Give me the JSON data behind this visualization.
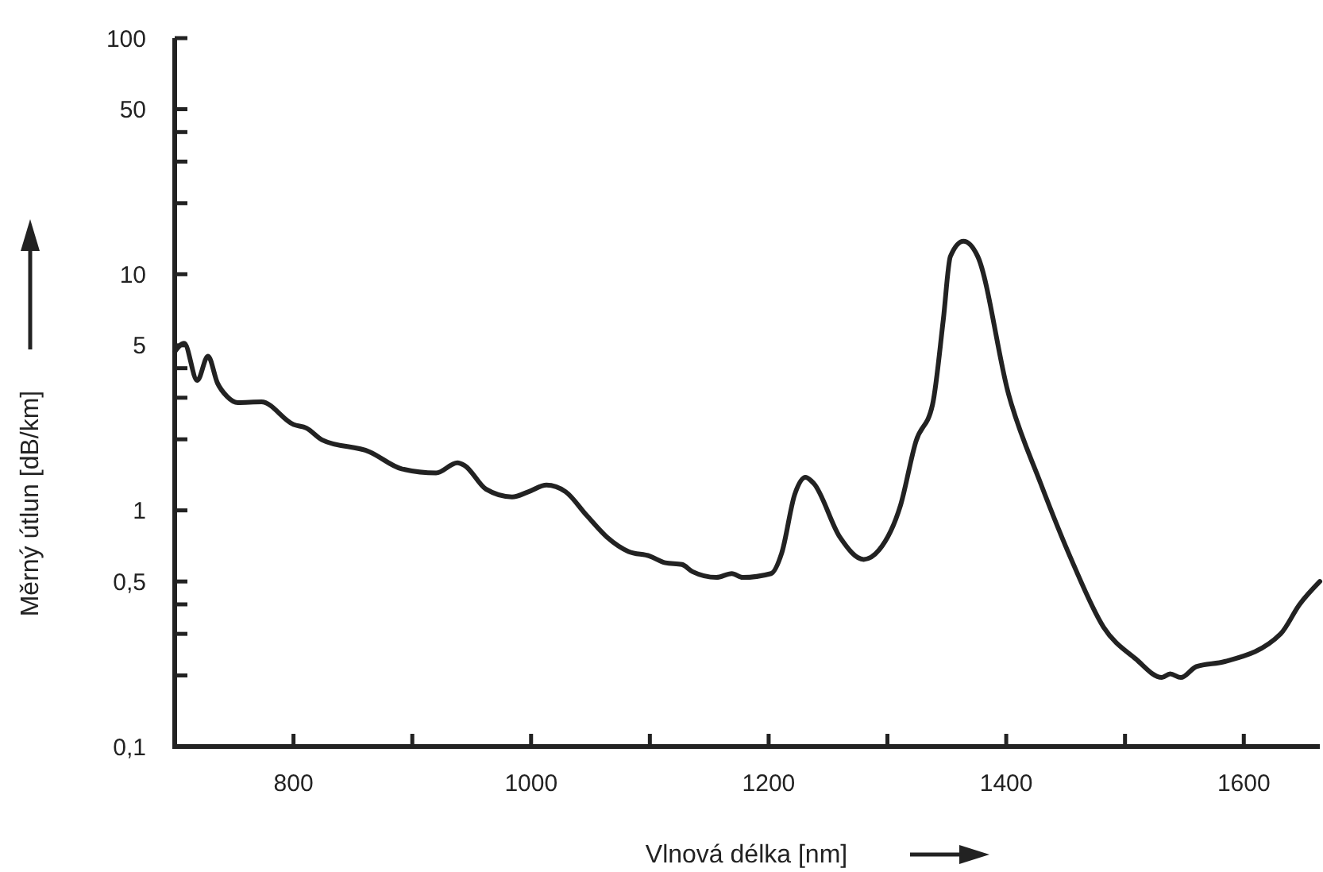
{
  "chart_data": {
    "type": "line",
    "xlabel": "Vlnová délka [nm]",
    "ylabel": "Měrný útlun [dB/km]",
    "log": "y",
    "xlim": [
      700,
      1664
    ],
    "ylim": [
      0.1,
      100
    ],
    "xticks": [
      {
        "value": 800,
        "label": "800"
      },
      {
        "value": 900,
        "label": null
      },
      {
        "value": 1000,
        "label": "1000"
      },
      {
        "value": 1100,
        "label": null
      },
      {
        "value": 1200,
        "label": "1200"
      },
      {
        "value": 1300,
        "label": null
      },
      {
        "value": 1400,
        "label": "1400"
      },
      {
        "value": 1500,
        "label": null
      },
      {
        "value": 1600,
        "label": "1600"
      }
    ],
    "yticks": [
      {
        "value": 0.1,
        "label": "0,1"
      },
      {
        "value": 0.2,
        "label": null
      },
      {
        "value": 0.3,
        "label": null
      },
      {
        "value": 0.4,
        "label": null
      },
      {
        "value": 0.5,
        "label": "0,5"
      },
      1,
      {
        "value": 2,
        "label": null
      },
      {
        "value": 3,
        "label": null
      },
      {
        "value": 4,
        "label": null
      },
      5,
      10,
      {
        "value": 20,
        "label": null
      },
      {
        "value": 30,
        "label": null
      },
      {
        "value": 40,
        "label": null
      },
      50,
      100
    ],
    "series": [
      {
        "color": "#222222",
        "x": [
          700,
          708,
          719,
          728,
          736,
          744,
          753,
          773,
          800,
          811,
          824,
          864,
          891,
          920,
          938,
          944,
          962,
          984,
          998,
          1013,
          1029,
          1047,
          1064,
          1082,
          1100,
          1113,
          1127,
          1136,
          1156,
          1169,
          1178,
          1202,
          1211,
          1222,
          1231,
          1238,
          1260,
          1280,
          1293,
          1311,
          1324,
          1338,
          1347,
          1353,
          1364,
          1376,
          1402,
          1429,
          1456,
          1482,
          1509,
          1531,
          1538,
          1547,
          1560,
          1584,
          1631,
          1647,
          1664
        ],
        "values": [
          4.7,
          5.1,
          3.55,
          4.5,
          3.46,
          3.04,
          2.86,
          2.88,
          2.31,
          2.23,
          1.99,
          1.77,
          1.5,
          1.44,
          1.59,
          1.55,
          1.23,
          1.14,
          1.2,
          1.28,
          1.2,
          0.95,
          0.77,
          0.67,
          0.64,
          0.6,
          0.59,
          0.55,
          0.52,
          0.54,
          0.52,
          0.54,
          0.66,
          1.17,
          1.38,
          1.3,
          0.77,
          0.62,
          0.68,
          1.05,
          1.96,
          2.81,
          6.4,
          11.9,
          13.8,
          11.9,
          3.1,
          1.3,
          0.6,
          0.32,
          0.235,
          0.196,
          0.203,
          0.196,
          0.218,
          0.229,
          0.3,
          0.4,
          0.5
        ]
      }
    ],
    "line_style": "solid",
    "marker": "none"
  }
}
